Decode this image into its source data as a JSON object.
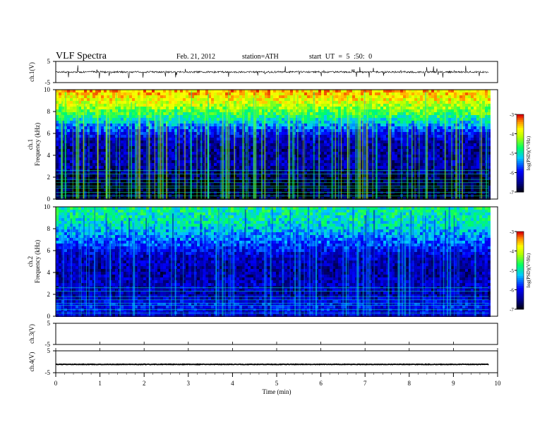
{
  "header": {
    "title": "VLF  Spectra",
    "date": "Feb. 21, 2012",
    "station": "station=ATH",
    "start": "start  UT =   5 :50: 0"
  },
  "chart_data": [
    {
      "type": "line",
      "panel": "ch1-waveform",
      "ylabel": "ch.1(V)",
      "ylim": [
        -5,
        5
      ],
      "yticks": [
        "5",
        "-5"
      ],
      "baseline": 0,
      "color": "#000000"
    },
    {
      "type": "heatmap",
      "panel": "ch1-spectrogram",
      "ylabel_line1": "ch.1",
      "ylabel_line2": "Frequency (kHz)",
      "ylim": [
        0,
        10
      ],
      "yticks": [
        "0",
        "2",
        "4",
        "6",
        "8",
        "10"
      ],
      "colorbar": {
        "label": "log(PSD)(V²/Hz)",
        "ticks": [
          "-3",
          "-4",
          "-5",
          "-6",
          "-7"
        ],
        "range": [
          -7,
          -3
        ]
      },
      "band_levels": [
        {
          "f": 10.0,
          "psd": -3.5
        },
        {
          "f": 9.0,
          "psd": -3.8
        },
        {
          "f": 8.2,
          "psd": -4.3
        },
        {
          "f": 7.3,
          "psd": -4.9
        },
        {
          "f": 6.5,
          "psd": -5.6
        },
        {
          "f": 5.5,
          "psd": -6.2
        },
        {
          "f": 4.5,
          "psd": -6.4
        },
        {
          "f": 3.2,
          "psd": -6.3
        },
        {
          "f": 2.2,
          "psd": -6.6
        },
        {
          "f": 1.0,
          "psd": -6.9
        },
        {
          "f": 0.0,
          "psd": -6.8
        }
      ]
    },
    {
      "type": "heatmap",
      "panel": "ch2-spectrogram",
      "ylabel_line1": "ch.2",
      "ylabel_line2": "Frequency (kHz)",
      "ylim": [
        0,
        10
      ],
      "yticks": [
        "0",
        "2",
        "4",
        "6",
        "8",
        "10"
      ],
      "colorbar": {
        "label": "log(PSD)(V²/Hz)",
        "ticks": [
          "-3",
          "-4",
          "-5",
          "-6",
          "-7"
        ],
        "range": [
          -7,
          -3
        ]
      },
      "band_levels": [
        {
          "f": 10.0,
          "psd": -4.8
        },
        {
          "f": 8.5,
          "psd": -5.0
        },
        {
          "f": 7.0,
          "psd": -5.5
        },
        {
          "f": 5.5,
          "psd": -6.2
        },
        {
          "f": 4.0,
          "psd": -6.4
        },
        {
          "f": 3.0,
          "psd": -6.2
        },
        {
          "f": 2.0,
          "psd": -6.4
        },
        {
          "f": 1.0,
          "psd": -5.9
        },
        {
          "f": 0.0,
          "psd": -6.2
        }
      ]
    },
    {
      "type": "line",
      "panel": "ch3-waveform",
      "ylabel": "ch.3(V)",
      "ylim": [
        -5,
        5
      ],
      "yticks": [
        "5",
        "-5"
      ]
    },
    {
      "type": "line",
      "panel": "ch4-waveform",
      "ylabel": "ch.4(V)",
      "ylim": [
        -5,
        5
      ],
      "yticks": [
        "5",
        "-5"
      ],
      "baseline": -1.2
    }
  ],
  "xaxis": {
    "label": "Time  (min)",
    "xlim": [
      0,
      10
    ],
    "data_end": 9.8,
    "ticks": [
      "0",
      "1",
      "2",
      "3",
      "4",
      "5",
      "6",
      "7",
      "8",
      "9",
      "10"
    ]
  }
}
